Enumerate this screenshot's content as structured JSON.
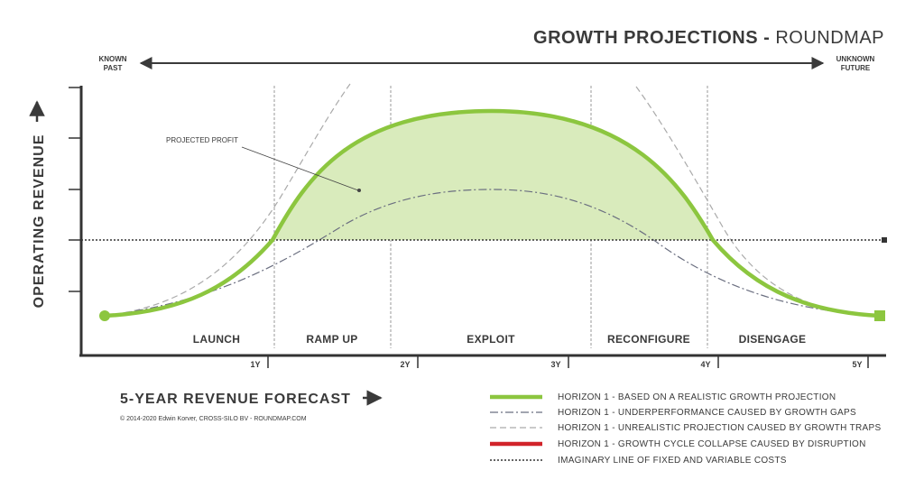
{
  "title": {
    "bold": "GROWTH PROJECTIONS",
    "separator": " - ",
    "light": "ROUNDMAP"
  },
  "timeline": {
    "left_line1": "KNOWN",
    "left_line2": "PAST",
    "right_line1": "UNKNOWN",
    "right_line2": "FUTURE"
  },
  "axes": {
    "y_label": "OPERATING REVENUE",
    "x_label": "5-YEAR REVENUE FORECAST",
    "x_ticks": [
      "1Y",
      "2Y",
      "3Y",
      "4Y",
      "5Y"
    ]
  },
  "phases": [
    "LAUNCH",
    "RAMP UP",
    "EXPLOIT",
    "RECONFIGURE",
    "DISENGAGE"
  ],
  "annotation": "PROJECTED PROFIT",
  "legend": [
    {
      "label": "HORIZON 1 - BASED ON A REALISTIC GROWTH PROJECTION",
      "style": "solid-thick",
      "color": "#8cc63f"
    },
    {
      "label": "HORIZON 1 - UNDERPERFORMANCE CAUSED BY GROWTH GAPS",
      "style": "dash-dot",
      "color": "#6b6f80"
    },
    {
      "label": "HORIZON 1 - UNREALISTIC PROJECTION CAUSED BY GROWTH TRAPS",
      "style": "dashed",
      "color": "#aaaaaa"
    },
    {
      "label": "HORIZON 1 - GROWTH CYCLE COLLAPSE CAUSED BY DISRUPTION",
      "style": "solid-thick",
      "color": "#d1232a"
    },
    {
      "label": "IMAGINARY LINE OF FIXED AND VARIABLE COSTS",
      "style": "dotted",
      "color": "#333333"
    }
  ],
  "credit": "© 2014-2020 Edwin Korver, CROSS-SILO BV - ROUNDMAP.COM",
  "colors": {
    "realistic": "#8cc63f",
    "fill": "#d9ebbc",
    "axis": "#333333"
  }
}
